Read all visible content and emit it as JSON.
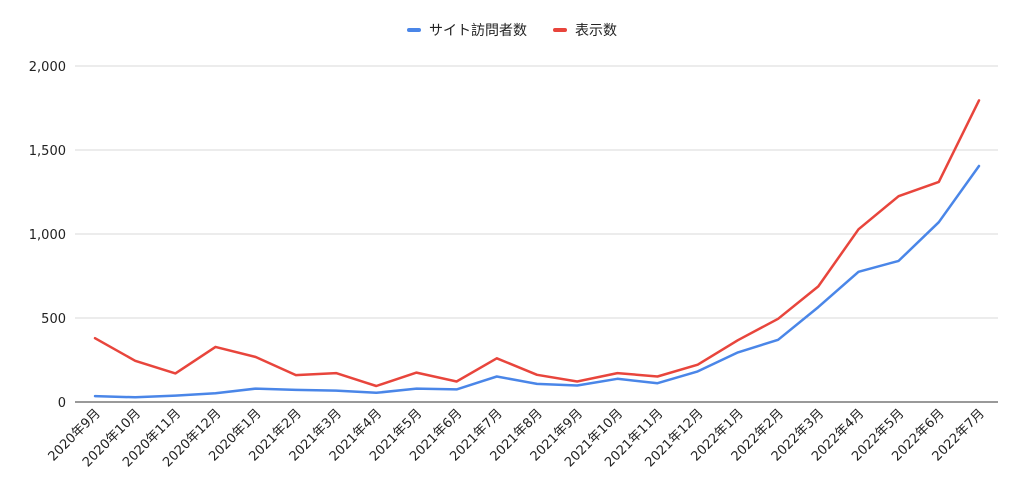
{
  "chart_data": {
    "type": "line",
    "categories": [
      "2020年9月",
      "2020年10月",
      "2020年11月",
      "2020年12月",
      "2020年1月",
      "2021年2月",
      "2021年3月",
      "2021年4月",
      "2021年5月",
      "2021年6月",
      "2021年7月",
      "2021年8月",
      "2021年9月",
      "2021年10月",
      "2021年11月",
      "2021年12月",
      "2022年1月",
      "2022年2月",
      "2022年3月",
      "2022年4月",
      "2022年5月",
      "2022年6月",
      "2022年7月"
    ],
    "series": [
      {
        "name": "サイト訪問者数",
        "color": "#4a86e8",
        "values": [
          35,
          28,
          38,
          52,
          80,
          72,
          68,
          55,
          80,
          75,
          152,
          108,
          98,
          138,
          112,
          182,
          295,
          370,
          565,
          775,
          840,
          1070,
          1405
        ]
      },
      {
        "name": "表示数",
        "color": "#e8453c",
        "values": [
          380,
          245,
          170,
          328,
          268,
          160,
          172,
          95,
          175,
          122,
          260,
          162,
          122,
          172,
          152,
          222,
          368,
          495,
          688,
          1028,
          1225,
          1310,
          1795
        ]
      }
    ],
    "yticks": [
      "0",
      "500",
      "1,000",
      "1,500",
      "2,000"
    ],
    "ylim": [
      0,
      2000
    ],
    "grid": true,
    "legend_position": "top-center"
  }
}
